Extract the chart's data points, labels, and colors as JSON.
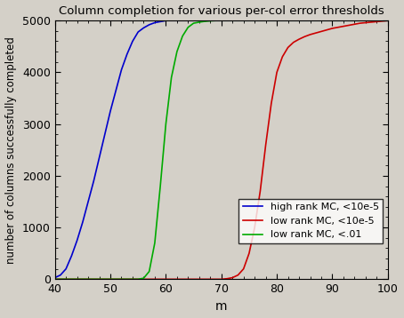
{
  "title": "Column completion for various per-col error thresholds",
  "xlabel": "m",
  "ylabel": "number of columns successfully completed",
  "xlim": [
    40,
    100
  ],
  "ylim": [
    0,
    5000
  ],
  "xticks": [
    40,
    50,
    60,
    70,
    80,
    90,
    100
  ],
  "yticks": [
    0,
    1000,
    2000,
    3000,
    4000,
    5000
  ],
  "legend": [
    {
      "label": "high rank MC, <10e-5",
      "color": "#0000cc"
    },
    {
      "label": "low rank MC, <10e-5",
      "color": "#cc0000"
    },
    {
      "label": "low rank MC, <.01",
      "color": "#00aa00"
    }
  ],
  "blue_x": [
    40,
    41,
    42,
    43,
    44,
    45,
    46,
    47,
    48,
    49,
    50,
    51,
    52,
    53,
    54,
    55,
    56,
    57,
    58,
    59,
    60,
    65,
    70,
    75,
    80,
    85,
    90,
    95,
    100
  ],
  "blue_y": [
    30,
    80,
    200,
    450,
    750,
    1100,
    1500,
    1900,
    2350,
    2800,
    3250,
    3650,
    4050,
    4350,
    4600,
    4780,
    4860,
    4920,
    4960,
    4980,
    5000,
    5000,
    5000,
    5000,
    5000,
    5000,
    5000,
    5000,
    5000
  ],
  "red_x": [
    40,
    65,
    70,
    71,
    72,
    73,
    74,
    75,
    76,
    77,
    78,
    79,
    80,
    81,
    82,
    83,
    84,
    85,
    86,
    87,
    88,
    89,
    90,
    91,
    92,
    93,
    94,
    95,
    96,
    97,
    98,
    99,
    100
  ],
  "red_y": [
    0,
    0,
    0,
    10,
    30,
    80,
    200,
    500,
    1000,
    1700,
    2600,
    3400,
    4000,
    4300,
    4480,
    4580,
    4640,
    4690,
    4730,
    4760,
    4790,
    4820,
    4850,
    4870,
    4890,
    4910,
    4930,
    4950,
    4960,
    4970,
    4980,
    4990,
    5000
  ],
  "green_x": [
    40,
    54,
    55,
    56,
    57,
    58,
    59,
    60,
    61,
    62,
    63,
    64,
    65,
    66,
    67,
    68,
    69,
    70,
    71,
    72,
    75,
    80,
    85,
    90,
    95,
    100
  ],
  "green_y": [
    0,
    0,
    0,
    20,
    150,
    700,
    1800,
    3000,
    3900,
    4400,
    4700,
    4870,
    4950,
    4970,
    4985,
    4995,
    5000,
    5000,
    5000,
    5000,
    5000,
    5000,
    5000,
    5000,
    5000,
    5000
  ]
}
